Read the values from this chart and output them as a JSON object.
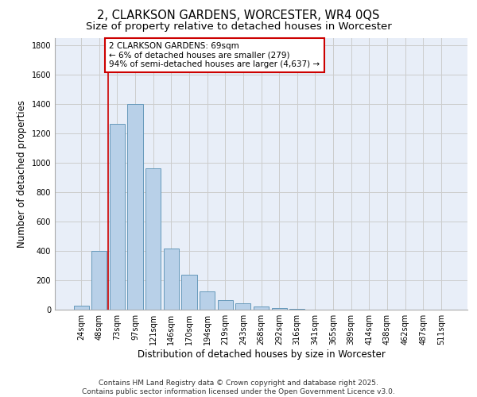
{
  "title": "2, CLARKSON GARDENS, WORCESTER, WR4 0QS",
  "subtitle": "Size of property relative to detached houses in Worcester",
  "xlabel": "Distribution of detached houses by size in Worcester",
  "ylabel": "Number of detached properties",
  "categories": [
    "24sqm",
    "48sqm",
    "73sqm",
    "97sqm",
    "121sqm",
    "146sqm",
    "170sqm",
    "194sqm",
    "219sqm",
    "243sqm",
    "268sqm",
    "292sqm",
    "316sqm",
    "341sqm",
    "365sqm",
    "389sqm",
    "414sqm",
    "438sqm",
    "462sqm",
    "487sqm",
    "511sqm"
  ],
  "values": [
    25,
    400,
    1265,
    1400,
    960,
    415,
    235,
    125,
    65,
    45,
    20,
    10,
    5,
    2,
    1,
    0,
    0,
    0,
    0,
    0,
    0
  ],
  "bar_color": "#b8d0e8",
  "bar_edge_color": "#6699bb",
  "vline_x": 1.5,
  "vline_color": "#cc0000",
  "annotation_text": "2 CLARKSON GARDENS: 69sqm\n← 6% of detached houses are smaller (279)\n94% of semi-detached houses are larger (4,637) →",
  "annotation_box_color": "#ffffff",
  "annotation_box_edge": "#cc0000",
  "ylim": [
    0,
    1850
  ],
  "yticks": [
    0,
    200,
    400,
    600,
    800,
    1000,
    1200,
    1400,
    1600,
    1800
  ],
  "grid_color": "#cccccc",
  "bg_color": "#e8eef8",
  "footer_line1": "Contains HM Land Registry data © Crown copyright and database right 2025.",
  "footer_line2": "Contains public sector information licensed under the Open Government Licence v3.0.",
  "title_fontsize": 10.5,
  "subtitle_fontsize": 9.5,
  "axis_label_fontsize": 8.5,
  "tick_fontsize": 7,
  "annotation_fontsize": 7.5,
  "footer_fontsize": 6.5
}
